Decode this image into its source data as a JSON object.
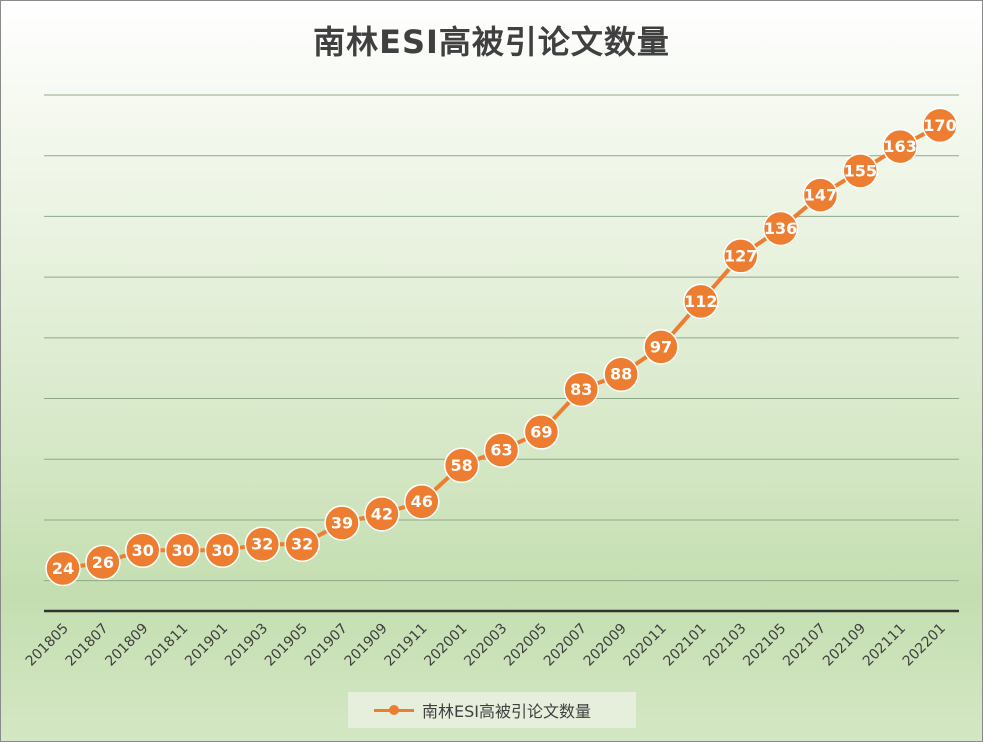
{
  "chart_data": {
    "type": "line",
    "title": "南林ESI高被引论文数量",
    "categories": [
      "201805",
      "201807",
      "201809",
      "201811",
      "201901",
      "201903",
      "201905",
      "201907",
      "201909",
      "201911",
      "202001",
      "202003",
      "202005",
      "202007",
      "202009",
      "202011",
      "202101",
      "202103",
      "202105",
      "202107",
      "202109",
      "202111",
      "202201"
    ],
    "series": [
      {
        "name": "南林ESI高被引论文数量",
        "values": [
          24,
          26,
          30,
          30,
          30,
          32,
          32,
          39,
          42,
          46,
          58,
          63,
          69,
          83,
          88,
          97,
          112,
          127,
          136,
          147,
          155,
          163,
          170
        ],
        "color": "#ed7d31"
      }
    ],
    "ylim": [
      10,
      180
    ],
    "grid": true,
    "legend_position": "bottom",
    "data_labels": true
  }
}
